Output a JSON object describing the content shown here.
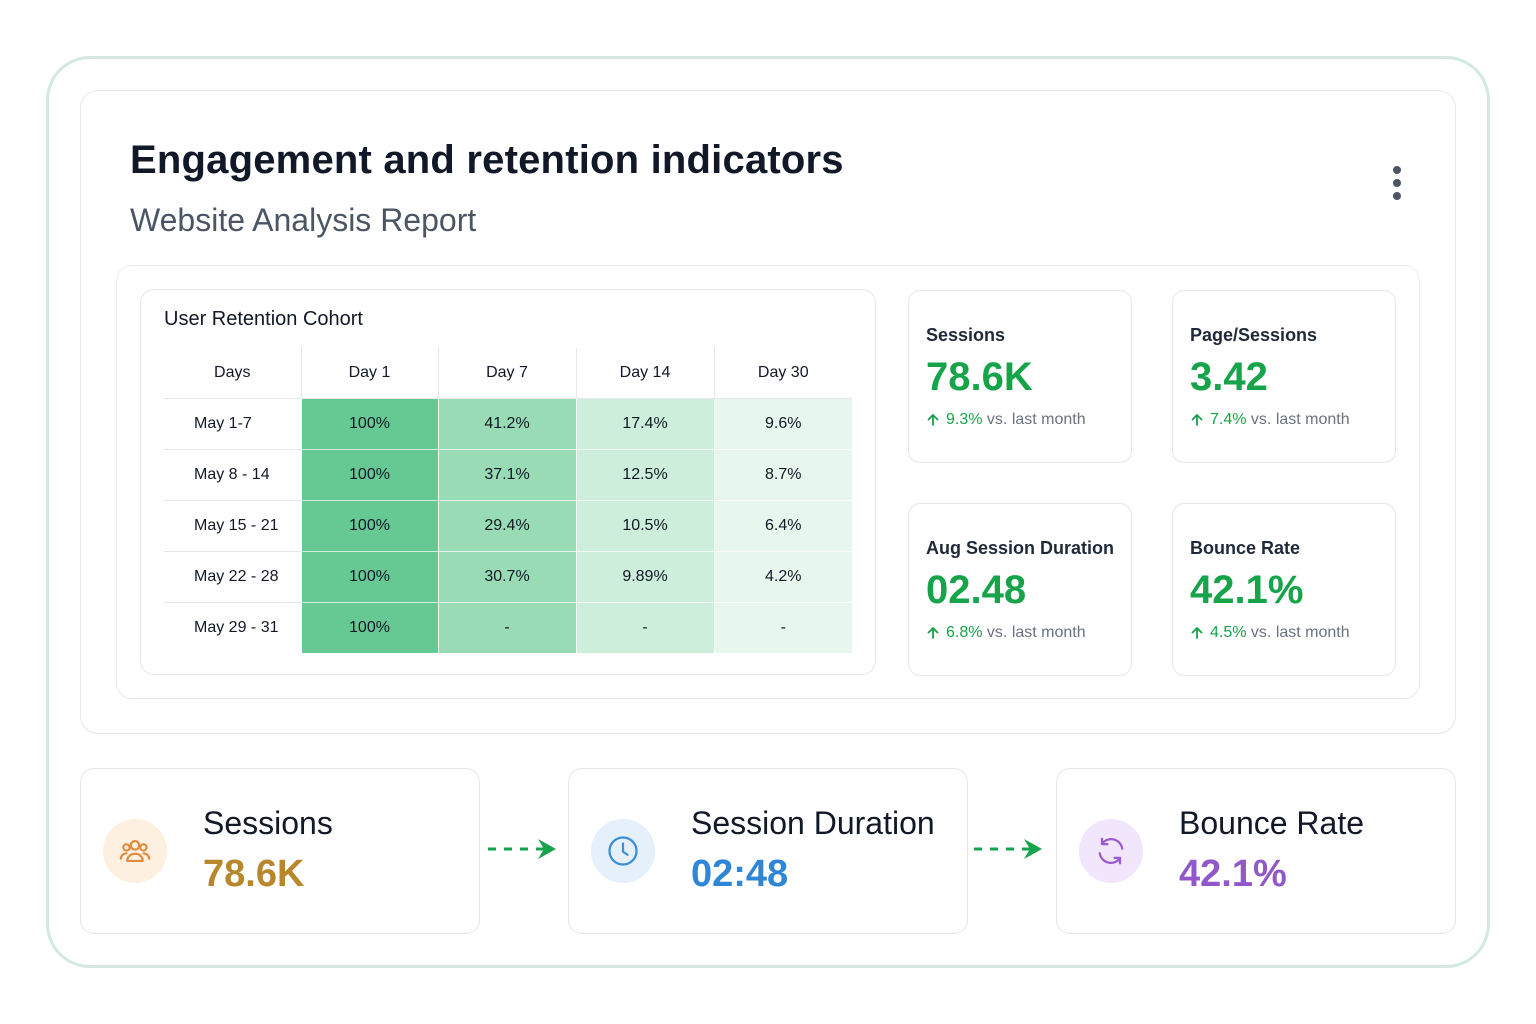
{
  "header": {
    "title": "Engagement and retention indicators",
    "subtitle": "Website Analysis Report",
    "menu_icon": "more-vertical-icon"
  },
  "cohort": {
    "title": "User Retention Cohort",
    "columns": [
      "Days",
      "Day 1",
      "Day 7",
      "Day 14",
      "Day 30"
    ],
    "rows": [
      {
        "label": "May 1-7",
        "cells": [
          "100%",
          "41.2%",
          "17.4%",
          "9.6%"
        ]
      },
      {
        "label": "May 8 - 14",
        "cells": [
          "100%",
          "37.1%",
          "12.5%",
          "8.7%"
        ]
      },
      {
        "label": "May 15 - 21",
        "cells": [
          "100%",
          "29.4%",
          "10.5%",
          "6.4%"
        ]
      },
      {
        "label": "May 22 - 28",
        "cells": [
          "100%",
          "30.7%",
          "9.89%",
          "4.2%"
        ]
      },
      {
        "label": "May 29 - 31",
        "cells": [
          "100%",
          "-",
          "-",
          "-"
        ]
      }
    ],
    "column_colors": [
      "#66c892",
      "#98dbb4",
      "#cdeedb",
      "#e8f7ee"
    ]
  },
  "metrics": [
    {
      "label": "Sessions",
      "value": "78.6K",
      "delta": "9.3%",
      "delta_text": "vs. last month"
    },
    {
      "label": "Page/Sessions",
      "value": "3.42",
      "delta": "7.4%",
      "delta_text": "vs. last month"
    },
    {
      "label": "Aug Session Duration",
      "value": "02.48",
      "delta": "6.8%",
      "delta_text": "vs. last month"
    },
    {
      "label": "Bounce Rate",
      "value": "42.1%",
      "delta": "4.5%",
      "delta_text": "vs. last month"
    }
  ],
  "flow": [
    {
      "label": "Sessions",
      "value": "78.6K",
      "icon": "users-icon",
      "color": "#b8862b",
      "icon_bg": "#fdf0e0",
      "icon_color": "#e08a3c"
    },
    {
      "label": "Session Duration",
      "value": "02:48",
      "icon": "clock-icon",
      "color": "#2f86d6",
      "icon_bg": "#e6f0fb",
      "icon_color": "#3a8fd8"
    },
    {
      "label": "Bounce Rate",
      "value": "42.1%",
      "icon": "refresh-icon",
      "color": "#9058c8",
      "icon_bg": "#f1e6fb",
      "icon_color": "#9a5bd0"
    }
  ],
  "colors": {
    "accent_green": "#16a34a",
    "frame_border": "#d3e9df",
    "arrow_green": "#16a34a"
  }
}
